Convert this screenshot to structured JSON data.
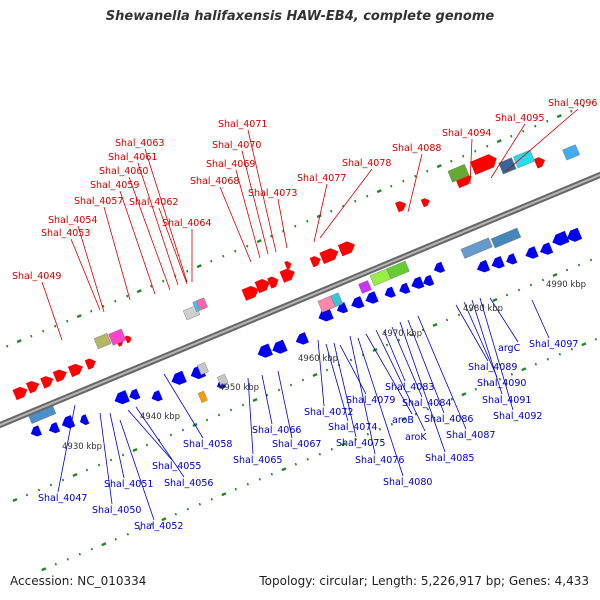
{
  "title": "Shewanella halifaxensis HAW-EB4, complete genome",
  "footer": {
    "accession": "Accession: NC_010334",
    "summary": "Topology: circular; Length: 5,226,917 bp; Genes: 4,433"
  },
  "colors": {
    "forward_label": "#d40000",
    "reverse_label": "#0000c8",
    "forward_gene": "#ff0000",
    "reverse_gene": "#0000ee",
    "backbone": "#888888",
    "tick": "#1f8a1f"
  },
  "scale_labels": [
    "4930 kbp",
    "4940 kbp",
    "4950 kbp",
    "4960 kbp",
    "4970 kbp",
    "4980 kbp",
    "4990 kbp"
  ],
  "forward_genes": [
    "Shal_4049",
    "Shal_4053",
    "Shal_4054",
    "Shal_4057",
    "Shal_4059",
    "Shal_4060",
    "Shal_4061",
    "Shal_4062",
    "Shal_4063",
    "Shal_4064",
    "Shal_4068",
    "Shal_4069",
    "Shal_4070",
    "Shal_4071",
    "Shal_4073",
    "Shal_4077",
    "Shal_4078",
    "Shal_4088",
    "Shal_4094",
    "Shal_4095",
    "Shal_4096"
  ],
  "reverse_genes": [
    "Shal_4047",
    "Shal_4050",
    "Shal_4051",
    "Shal_4052",
    "Shal_4055",
    "Shal_4056",
    "Shal_4058",
    "Shal_4065",
    "Shal_4066",
    "Shal_4067",
    "Shal_4072",
    "Shal_4074",
    "Shal_4075",
    "Shal_4076",
    "Shal_4079",
    "Shal_4080",
    "aroB",
    "aroK",
    "Shal_4083",
    "Shal_4084",
    "Shal_4085",
    "Shal_4086",
    "Shal_4087",
    "Shal_4089",
    "Shal_4090",
    "Shal_4091",
    "Shal_4092",
    "argC",
    "Shal_4097"
  ]
}
